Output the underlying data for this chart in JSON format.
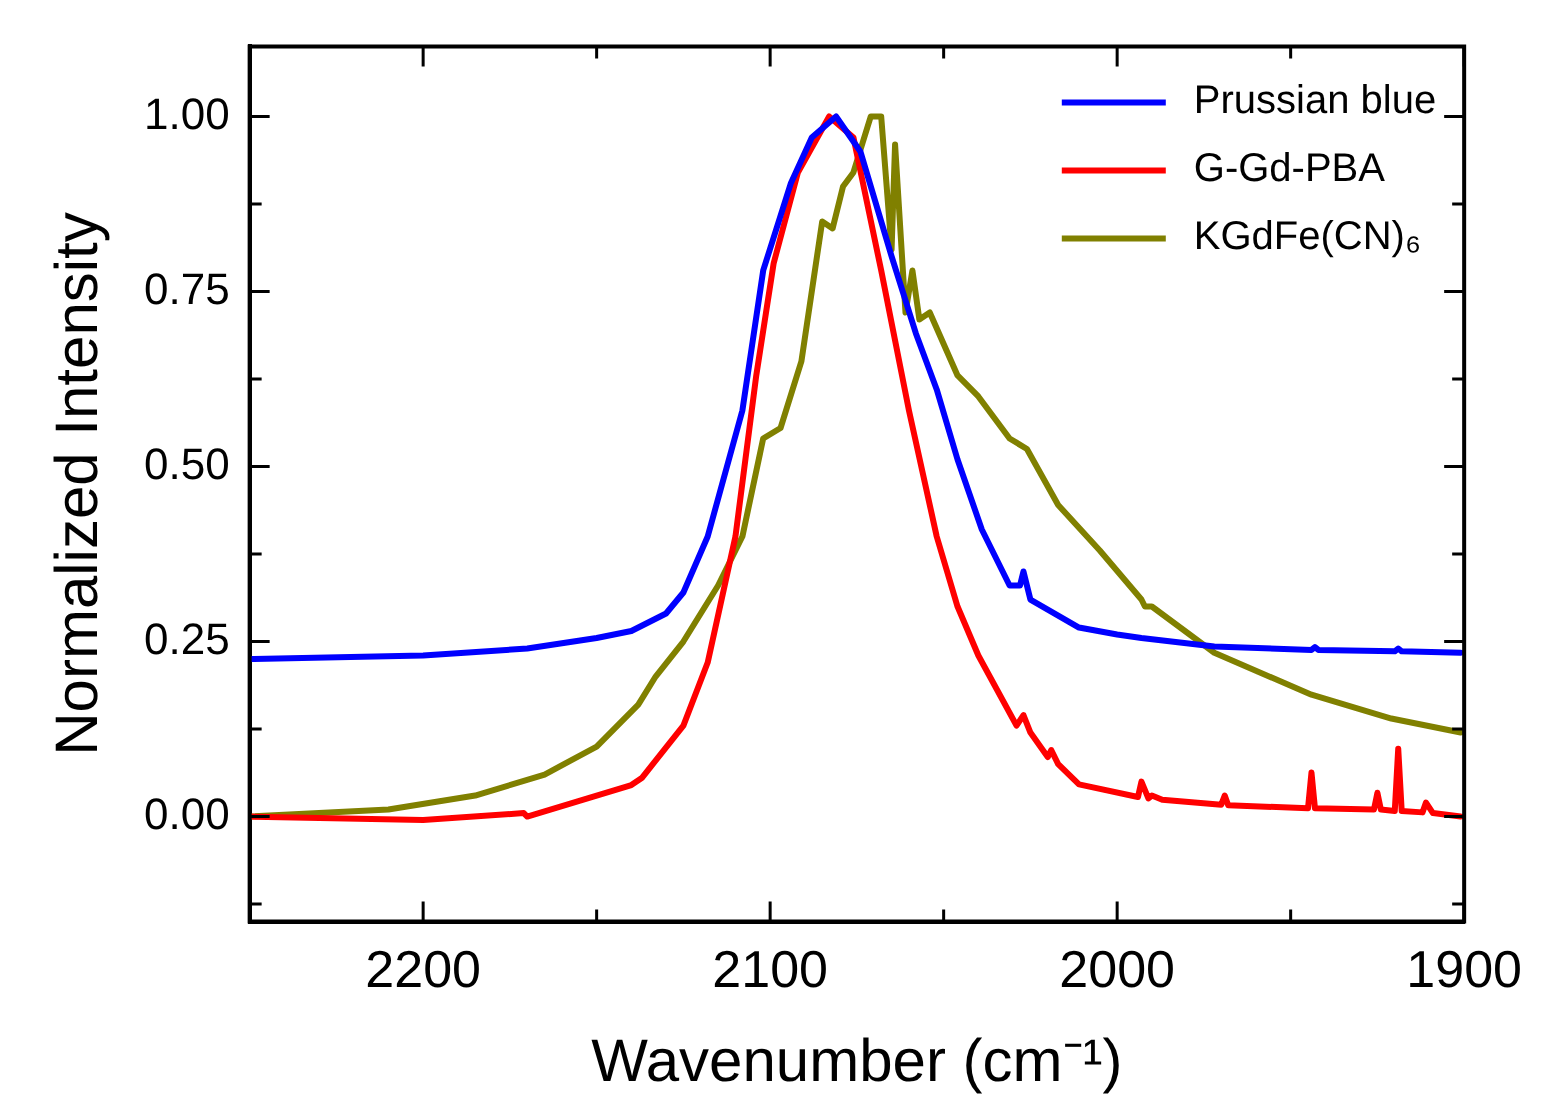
{
  "chart_data": {
    "type": "line",
    "xlabel": "Wavenumber (cm⁻¹)",
    "ylabel": "Normalized Intensity",
    "xlim": [
      2250,
      1900
    ],
    "xticks": [
      2200,
      {
        "value": 2150,
        "label": null
      },
      2100,
      {
        "value": 2050,
        "label": null
      },
      2000,
      {
        "value": 1950,
        "label": null
      },
      1900
    ],
    "ylim": [
      -0.15,
      1.1
    ],
    "yticks": [
      {
        "value": -0.125,
        "label": null
      },
      {
        "value": 0,
        "label": "0.00"
      },
      {
        "value": 0.125,
        "label": null
      },
      0.25,
      {
        "value": 0.375,
        "label": null
      },
      {
        "value": 0.5,
        "label": "0.50"
      },
      {
        "value": 0.625,
        "label": null
      },
      0.75,
      {
        "value": 0.875,
        "label": null
      },
      {
        "value": 1,
        "label": "1.00"
      }
    ],
    "legend": "top right",
    "grid": false,
    "marker": "none",
    "line_style": "solid",
    "series": [
      {
        "name": "Prussian blue",
        "color": "#0000ff",
        "x": [
          2250,
          2200,
          2170,
          2150,
          2140,
          2130,
          2125,
          2118,
          2108,
          2102,
          2094,
          2088,
          2081,
          2074,
          2065,
          2058,
          2052,
          2046,
          2039,
          2031,
          2028,
          2027,
          2025,
          2018,
          2011,
          2000,
          1993,
          1972,
          1944,
          1943,
          1942,
          1920,
          1919,
          1918,
          1901
        ],
        "values": [
          0.225,
          0.23,
          0.24,
          0.255,
          0.265,
          0.29,
          0.32,
          0.4,
          0.58,
          0.78,
          0.905,
          0.97,
          1.0,
          0.95,
          0.8,
          0.69,
          0.61,
          0.51,
          0.41,
          0.33,
          0.33,
          0.35,
          0.31,
          0.29,
          0.27,
          0.26,
          0.255,
          0.243,
          0.238,
          0.242,
          0.238,
          0.236,
          0.24,
          0.236,
          0.234
        ]
      },
      {
        "name": "G-Gd-PBA",
        "color": "#ff0000",
        "x": [
          2250,
          2200,
          2171,
          2170,
          2160,
          2150,
          2140,
          2137,
          2125,
          2118,
          2110,
          2104,
          2099,
          2092,
          2083,
          2076,
          2068,
          2060,
          2052,
          2046,
          2040,
          2029,
          2027,
          2025,
          2020,
          2019,
          2017,
          2011,
          1994,
          1993,
          1991,
          1990,
          1987,
          1970,
          1969,
          1968,
          1945,
          1944,
          1943,
          1926,
          1925,
          1924,
          1920,
          1919,
          1918,
          1912,
          1911,
          1909,
          1901
        ],
        "values": [
          0.0,
          -0.005,
          0.005,
          0.0,
          0.015,
          0.03,
          0.045,
          0.055,
          0.13,
          0.22,
          0.4,
          0.63,
          0.79,
          0.92,
          1.0,
          0.97,
          0.78,
          0.58,
          0.4,
          0.3,
          0.23,
          0.13,
          0.145,
          0.12,
          0.085,
          0.095,
          0.075,
          0.046,
          0.028,
          0.05,
          0.026,
          0.03,
          0.024,
          0.017,
          0.03,
          0.016,
          0.012,
          0.063,
          0.012,
          0.01,
          0.034,
          0.01,
          0.008,
          0.097,
          0.008,
          0.006,
          0.02,
          0.005,
          0.0
        ]
      },
      {
        "name": "KGdFe(CN)₆",
        "color": "#808000",
        "x": [
          2250,
          2210,
          2185,
          2165,
          2150,
          2138,
          2133,
          2125,
          2115,
          2108,
          2102,
          2097,
          2091,
          2085,
          2082,
          2079,
          2076,
          2071,
          2068,
          2065,
          2064,
          2061,
          2059,
          2057,
          2054,
          2046,
          2040,
          2031,
          2026,
          2017,
          2005,
          1993,
          1992,
          1990,
          1972,
          1944,
          1921,
          1901
        ],
        "values": [
          0.0,
          0.01,
          0.03,
          0.06,
          0.1,
          0.16,
          0.2,
          0.25,
          0.33,
          0.4,
          0.54,
          0.555,
          0.65,
          0.85,
          0.84,
          0.9,
          0.92,
          1.0,
          1.0,
          0.81,
          0.96,
          0.72,
          0.78,
          0.71,
          0.72,
          0.63,
          0.6,
          0.54,
          0.525,
          0.445,
          0.38,
          0.31,
          0.3,
          0.3,
          0.234,
          0.174,
          0.14,
          0.12
        ]
      }
    ]
  }
}
